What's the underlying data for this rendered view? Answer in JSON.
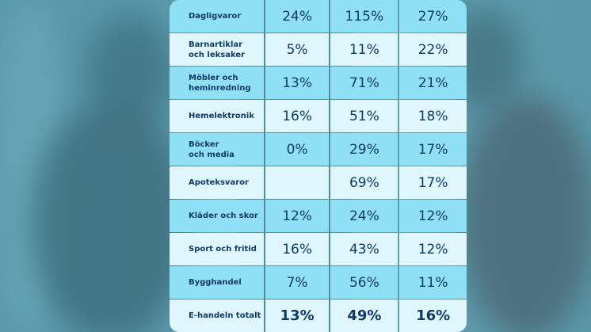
{
  "chart_data": {
    "type": "table",
    "rows": [
      {
        "category": "Dagligvaror",
        "values": [
          "24%",
          "115%",
          "27%"
        ]
      },
      {
        "category": "Barnartiklar\noch leksaker",
        "values": [
          "5%",
          "11%",
          "22%"
        ]
      },
      {
        "category": "Möbler och\nheminredning",
        "values": [
          "13%",
          "71%",
          "21%"
        ]
      },
      {
        "category": "Hemelektronik",
        "values": [
          "16%",
          "51%",
          "18%"
        ]
      },
      {
        "category": "Böcker\noch media",
        "values": [
          "0%",
          "29%",
          "17%"
        ]
      },
      {
        "category": "Apoteksvaror",
        "values": [
          "",
          "69%",
          "17%"
        ]
      },
      {
        "category": "Kläder och skor",
        "values": [
          "12%",
          "24%",
          "12%"
        ]
      },
      {
        "category": "Sport och fritid",
        "values": [
          "16%",
          "43%",
          "12%"
        ]
      },
      {
        "category": "Bygghandel",
        "values": [
          "7%",
          "56%",
          "11%"
        ]
      },
      {
        "category": "E-handeln totalt",
        "values": [
          "13%",
          "49%",
          "16%"
        ]
      }
    ],
    "colors": {
      "row_dark": "#8fe0f4",
      "row_light": "#dff6fc",
      "text": "#0d3a6b"
    }
  }
}
